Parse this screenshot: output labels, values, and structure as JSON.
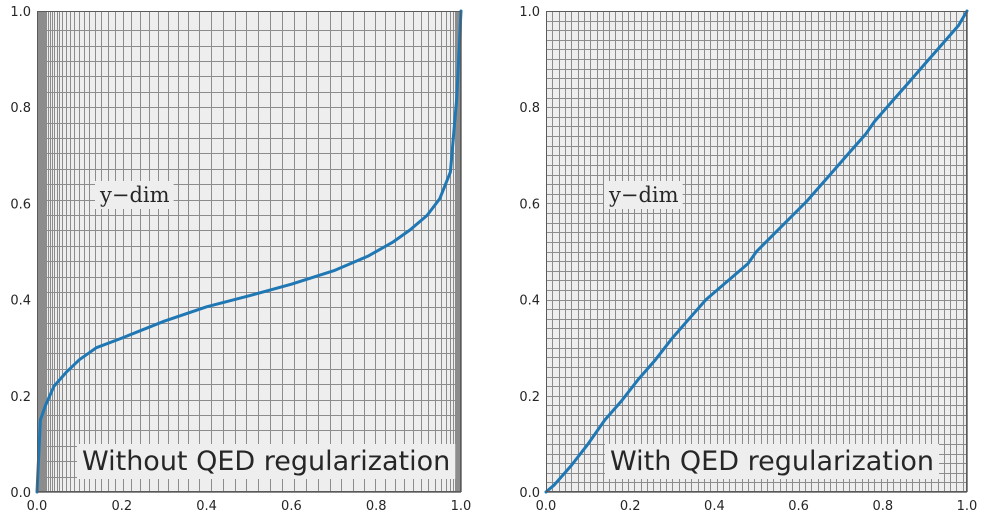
{
  "chart_data": [
    {
      "type": "line",
      "annotation": "y−dim",
      "label": "Without QED regularization",
      "xlim": [
        0,
        1
      ],
      "ylim": [
        0,
        1
      ],
      "xticks": [
        "0.0",
        "0.2",
        "0.4",
        "0.6",
        "0.8",
        "1.0"
      ],
      "yticks": [
        "0.0",
        "0.2",
        "0.4",
        "0.6",
        "0.8",
        "1.0"
      ],
      "grid": true,
      "line_color": "#1f77b4",
      "grid_line_color": "#8c8c8c",
      "background": "#eeeeee",
      "grid_x": [
        0.0,
        0.001,
        0.002,
        0.003,
        0.004,
        0.005,
        0.007,
        0.009,
        0.011,
        0.013,
        0.016,
        0.019,
        0.022,
        0.026,
        0.03,
        0.035,
        0.04,
        0.046,
        0.053,
        0.06,
        0.068,
        0.077,
        0.087,
        0.098,
        0.11,
        0.123,
        0.137,
        0.152,
        0.168,
        0.185,
        0.203,
        0.222,
        0.242,
        0.263,
        0.285,
        0.308,
        0.332,
        0.357,
        0.383,
        0.41,
        0.438,
        0.466,
        0.494,
        0.522,
        0.55,
        0.578,
        0.606,
        0.634,
        0.662,
        0.69,
        0.718,
        0.746,
        0.772,
        0.797,
        0.821,
        0.844,
        0.866,
        0.886,
        0.905,
        0.922,
        0.938,
        0.952,
        0.964,
        0.974,
        0.981,
        0.986,
        0.989,
        0.991,
        0.993,
        0.995,
        0.996,
        0.997,
        0.998,
        0.999,
        1.0
      ],
      "grid_y": [
        0.0,
        0.032,
        0.064,
        0.096,
        0.128,
        0.16,
        0.192,
        0.224,
        0.256,
        0.288,
        0.32,
        0.352,
        0.384,
        0.416,
        0.448,
        0.48,
        0.512,
        0.544,
        0.576,
        0.608,
        0.64,
        0.672,
        0.704,
        0.736,
        0.768,
        0.8,
        0.832,
        0.864,
        0.896,
        0.928,
        0.96,
        1.0
      ],
      "x": [
        0.0,
        0.008,
        0.02,
        0.04,
        0.07,
        0.1,
        0.14,
        0.2,
        0.3,
        0.4,
        0.5,
        0.6,
        0.7,
        0.78,
        0.84,
        0.88,
        0.92,
        0.95,
        0.975,
        0.99,
        1.0
      ],
      "y": [
        0.0,
        0.15,
        0.18,
        0.22,
        0.25,
        0.275,
        0.3,
        0.32,
        0.355,
        0.385,
        0.408,
        0.432,
        0.46,
        0.49,
        0.52,
        0.545,
        0.575,
        0.61,
        0.665,
        0.82,
        1.0
      ]
    },
    {
      "type": "line",
      "annotation": "y−dim",
      "label": "With QED regularization",
      "xlim": [
        0,
        1
      ],
      "ylim": [
        0,
        1
      ],
      "xticks": [
        "0.0",
        "0.2",
        "0.4",
        "0.6",
        "0.8",
        "1.0"
      ],
      "yticks": [
        "0.0",
        "0.2",
        "0.4",
        "0.6",
        "0.8",
        "1.0"
      ],
      "grid": true,
      "line_color": "#1f77b4",
      "grid_line_color": "#8c8c8c",
      "background": "#eeeeee",
      "grid_x": [
        0.0,
        0.015,
        0.03,
        0.045,
        0.06,
        0.075,
        0.09,
        0.105,
        0.12,
        0.135,
        0.15,
        0.165,
        0.18,
        0.195,
        0.21,
        0.225,
        0.24,
        0.255,
        0.27,
        0.285,
        0.3,
        0.315,
        0.33,
        0.345,
        0.36,
        0.375,
        0.39,
        0.405,
        0.42,
        0.435,
        0.45,
        0.465,
        0.48,
        0.495,
        0.51,
        0.525,
        0.54,
        0.555,
        0.57,
        0.585,
        0.6,
        0.615,
        0.63,
        0.645,
        0.66,
        0.675,
        0.69,
        0.705,
        0.72,
        0.735,
        0.75,
        0.765,
        0.78,
        0.795,
        0.81,
        0.825,
        0.84,
        0.855,
        0.87,
        0.885,
        0.9,
        0.915,
        0.93,
        0.945,
        0.96,
        0.975,
        0.99,
        1.0
      ],
      "grid_y": [
        0.0,
        0.02,
        0.04,
        0.06,
        0.08,
        0.1,
        0.12,
        0.14,
        0.16,
        0.18,
        0.2,
        0.22,
        0.24,
        0.26,
        0.28,
        0.3,
        0.32,
        0.34,
        0.36,
        0.38,
        0.4,
        0.42,
        0.44,
        0.46,
        0.48,
        0.5,
        0.52,
        0.54,
        0.56,
        0.58,
        0.6,
        0.62,
        0.64,
        0.66,
        0.68,
        0.7,
        0.72,
        0.74,
        0.76,
        0.78,
        0.8,
        0.82,
        0.84,
        0.86,
        0.88,
        0.9,
        0.92,
        0.94,
        0.96,
        0.98,
        1.0
      ],
      "x": [
        0.0,
        0.02,
        0.06,
        0.1,
        0.14,
        0.18,
        0.22,
        0.26,
        0.3,
        0.34,
        0.38,
        0.4,
        0.44,
        0.48,
        0.5,
        0.54,
        0.58,
        0.62,
        0.64,
        0.68,
        0.72,
        0.76,
        0.78,
        0.82,
        0.86,
        0.9,
        0.94,
        0.98,
        1.0
      ],
      "y": [
        0.0,
        0.015,
        0.055,
        0.1,
        0.15,
        0.19,
        0.235,
        0.275,
        0.32,
        0.36,
        0.4,
        0.415,
        0.445,
        0.475,
        0.5,
        0.535,
        0.57,
        0.605,
        0.625,
        0.665,
        0.705,
        0.745,
        0.77,
        0.81,
        0.85,
        0.89,
        0.93,
        0.97,
        1.0
      ]
    }
  ]
}
